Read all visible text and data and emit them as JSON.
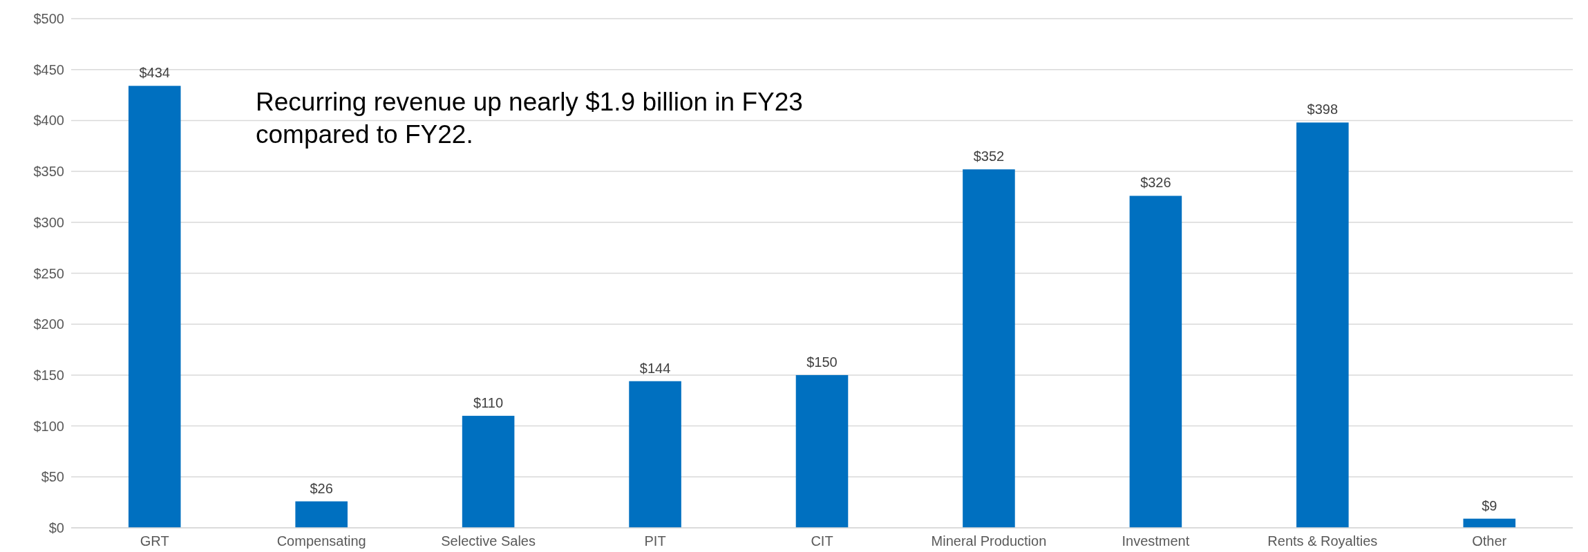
{
  "chart_data": {
    "type": "bar",
    "categories": [
      "GRT",
      "Compensating",
      "Selective Sales",
      "PIT",
      "CIT",
      "Mineral Production",
      "Investment",
      "Rents & Royalties",
      "Other"
    ],
    "values": [
      434,
      26,
      110,
      144,
      150,
      352,
      326,
      398,
      9
    ],
    "value_labels": [
      "$434",
      "$26",
      "$110",
      "$144",
      "$150",
      "$352",
      "$326",
      "$398",
      "$9"
    ],
    "color": "#0070c0",
    "ylim": [
      0,
      500
    ],
    "yticks": [
      {
        "value": 0,
        "label": "$0"
      },
      {
        "value": 50,
        "label": "$50"
      },
      {
        "value": 100,
        "label": "$100"
      },
      {
        "value": 150,
        "label": "$150"
      },
      {
        "value": 200,
        "label": "$200"
      },
      {
        "value": 250,
        "label": "$250"
      },
      {
        "value": 300,
        "label": "$300"
      },
      {
        "value": 350,
        "label": "$350"
      },
      {
        "value": 400,
        "label": "$400"
      },
      {
        "value": 450,
        "label": "$450"
      },
      {
        "value": 500,
        "label": "$500"
      }
    ],
    "grid": "y",
    "annotations": [
      "Recurring revenue up nearly $1.9 billion in FY23\ncompared to FY22."
    ]
  }
}
